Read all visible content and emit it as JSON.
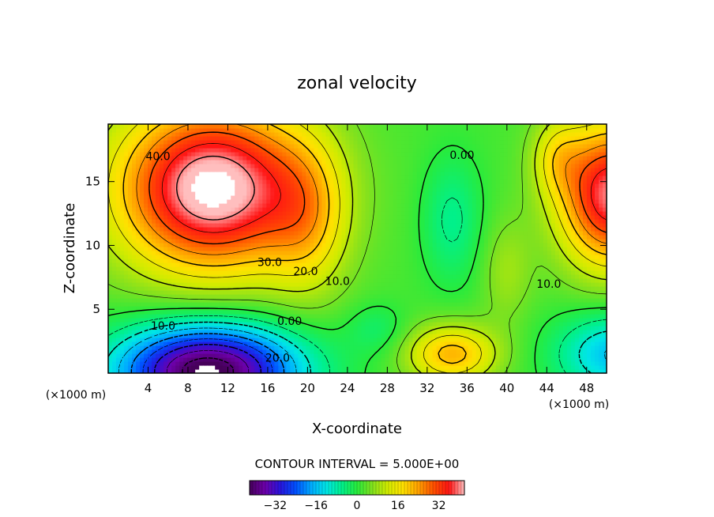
{
  "chart_data": {
    "type": "heatmap",
    "title": "zonal velocity",
    "xlabel": "X-coordinate",
    "ylabel": "Z-coordinate",
    "x_unit_label": "(×1000 m)",
    "x_unit_label_right": "(×1000 m)",
    "xlim": [
      0,
      50
    ],
    "ylim": [
      0,
      19.5
    ],
    "xticks": [
      4,
      8,
      12,
      16,
      20,
      24,
      28,
      32,
      36,
      40,
      44,
      48
    ],
    "yticks": [
      5,
      10,
      15
    ],
    "contour_interval_text": "CONTOUR INTERVAL = 5.000E+00",
    "colorbar": {
      "range": [
        -42,
        42
      ],
      "ticks": [
        -32,
        -16,
        0,
        16,
        32
      ]
    },
    "contour_labels": [
      {
        "text": "40.0",
        "x": 5.0,
        "y": 17.0
      },
      {
        "text": "30.0",
        "x": 16.2,
        "y": 8.7
      },
      {
        "text": "20.0",
        "x": 19.8,
        "y": 8.0
      },
      {
        "text": "10.0",
        "x": 23.0,
        "y": 7.2
      },
      {
        "text": "0.00",
        "x": 35.5,
        "y": 17.1
      },
      {
        "text": "10.0",
        "x": 44.2,
        "y": 7.0
      },
      {
        "text": "0.00",
        "x": 18.2,
        "y": 4.1
      },
      {
        "text": "10.0",
        "x": 5.5,
        "y": 3.7
      },
      {
        "text": "20.0",
        "x": 17.0,
        "y": 1.2
      }
    ],
    "features": [
      {
        "kind": "jet-max",
        "x": 11.0,
        "y": 14.5,
        "value": 42
      },
      {
        "kind": "neg-core",
        "x": 10.5,
        "y": 0.9,
        "value": -38
      },
      {
        "kind": "pos-right-top",
        "x": 50.0,
        "y": 14.0,
        "value": 38
      },
      {
        "kind": "zero-band",
        "x": 34.5,
        "y": 12.5,
        "value": 0
      },
      {
        "kind": "pos-bottom-center",
        "x": 35.0,
        "y": 1.8,
        "value": 20
      },
      {
        "kind": "neg-bottom-right",
        "x": 50.0,
        "y": 2.0,
        "value": -14
      }
    ]
  }
}
